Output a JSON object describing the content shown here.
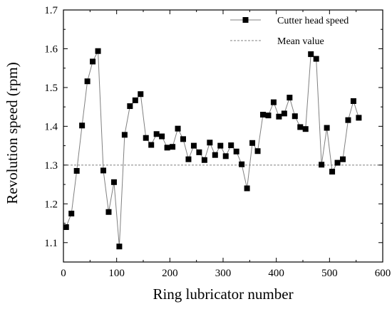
{
  "chart_data": {
    "type": "line",
    "xlabel": "Ring lubricator number",
    "ylabel": "Revolution speed (rpm)",
    "xlim": [
      0,
      600
    ],
    "ylim": [
      1.05,
      1.7
    ],
    "xticks": [
      0,
      100,
      200,
      300,
      400,
      500,
      600
    ],
    "yticks": [
      1.1,
      1.2,
      1.3,
      1.4,
      1.5,
      1.6,
      1.7
    ],
    "x_minor_step": 50,
    "y_minor_step": 0.05,
    "grid": false,
    "legend_position": "top-right",
    "colors": {
      "series": "#000000",
      "line": "#808080",
      "mean": "#808080"
    },
    "series": [
      {
        "name": "Cutter head speed",
        "marker": "square",
        "x": [
          5,
          15,
          25,
          35,
          45,
          55,
          65,
          75,
          85,
          95,
          105,
          115,
          125,
          135,
          145,
          155,
          165,
          175,
          185,
          195,
          205,
          215,
          225,
          235,
          245,
          255,
          265,
          275,
          285,
          295,
          305,
          315,
          325,
          335,
          345,
          355,
          365,
          375,
          385,
          395,
          405,
          415,
          425,
          435,
          445,
          455,
          465,
          475,
          485,
          495,
          505,
          515,
          525,
          535,
          545,
          555
        ],
        "values": [
          1.14,
          1.175,
          1.285,
          1.402,
          1.516,
          1.567,
          1.594,
          1.286,
          1.179,
          1.256,
          1.09,
          1.378,
          1.452,
          1.467,
          1.483,
          1.37,
          1.352,
          1.38,
          1.374,
          1.345,
          1.347,
          1.394,
          1.367,
          1.315,
          1.35,
          1.333,
          1.313,
          1.358,
          1.326,
          1.35,
          1.323,
          1.351,
          1.335,
          1.302,
          1.24,
          1.357,
          1.336,
          1.43,
          1.428,
          1.462,
          1.425,
          1.433,
          1.474,
          1.426,
          1.398,
          1.393,
          1.586,
          1.574,
          1.301,
          1.396,
          1.283,
          1.306,
          1.315,
          1.416,
          1.465,
          1.422
        ]
      },
      {
        "name": "Mean value",
        "style": "dashed",
        "value": 1.3
      }
    ]
  }
}
